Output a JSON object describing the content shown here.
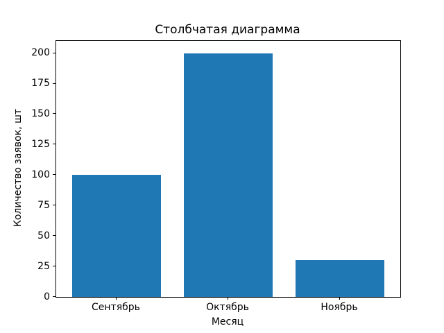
{
  "chart_data": {
    "type": "bar",
    "title": "Столбчатая диаграмма",
    "xlabel": "Месяц",
    "ylabel": "Количество заявок, шт",
    "categories": [
      "Сентябрь",
      "Октябрь",
      "Ноябрь"
    ],
    "values": [
      100,
      200,
      30
    ],
    "yticks": [
      0,
      25,
      50,
      75,
      100,
      125,
      150,
      175,
      200
    ],
    "ylim": [
      0,
      210
    ],
    "bar_width_fraction": 0.8,
    "bar_color": "#1f77b4",
    "axis_color": "#000000",
    "background_color": "#ffffff",
    "grid": "off",
    "legend": "none"
  }
}
